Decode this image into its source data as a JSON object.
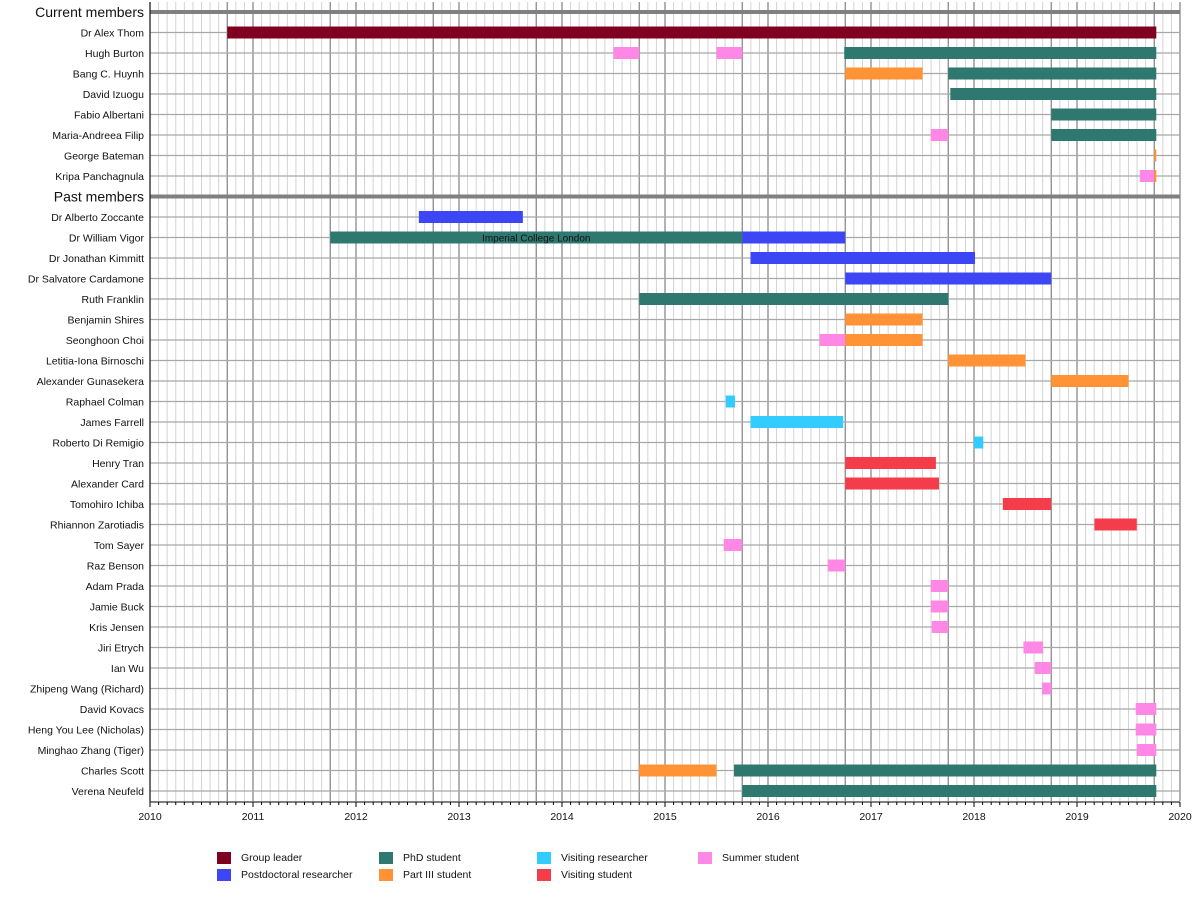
{
  "chart_data": {
    "type": "gantt",
    "title": "",
    "xlabel": "",
    "ylabel": "",
    "xlim": [
      2010,
      2020
    ],
    "x_ticks": [
      "2010",
      "2011",
      "2012",
      "2013",
      "2014",
      "2015",
      "2016",
      "2017",
      "2018",
      "2019",
      "2020"
    ],
    "minor_ticks_per_year": 12,
    "major_grid_note": "darker lines at each year start and each October (academic year)",
    "grid": true,
    "legend_position": "bottom",
    "roles": [
      {
        "key": "leader",
        "label": "Group leader",
        "color": "#7f0020"
      },
      {
        "key": "postdoc",
        "label": "Postdoctoral researcher",
        "color": "#3c46f5"
      },
      {
        "key": "phd",
        "label": "PhD student",
        "color": "#2e7870"
      },
      {
        "key": "partiii",
        "label": "Part III student",
        "color": "#ff9335"
      },
      {
        "key": "visres",
        "label": "Visiting researcher",
        "color": "#33ccff"
      },
      {
        "key": "visstu",
        "label": "Visiting student",
        "color": "#f53c4b"
      },
      {
        "key": "summer",
        "label": "Summer student",
        "color": "#ff88e6"
      }
    ],
    "rows": [
      {
        "type": "header",
        "label": "Current members"
      },
      {
        "label": "Dr Alex Thom",
        "bars": [
          {
            "role": "leader",
            "start": 2010.75,
            "end": 2019.77
          }
        ]
      },
      {
        "label": "Hugh Burton",
        "bars": [
          {
            "role": "summer",
            "start": 2014.5,
            "end": 2014.75
          },
          {
            "role": "summer",
            "start": 2015.5,
            "end": 2015.75
          },
          {
            "role": "phd",
            "start": 2016.74,
            "end": 2019.77
          }
        ]
      },
      {
        "label": "Bang C. Huynh",
        "bars": [
          {
            "role": "partiii",
            "start": 2016.75,
            "end": 2017.5
          },
          {
            "role": "phd",
            "start": 2017.75,
            "end": 2019.77
          }
        ]
      },
      {
        "label": "David Izuogu",
        "bars": [
          {
            "role": "phd",
            "start": 2017.77,
            "end": 2019.77
          }
        ]
      },
      {
        "label": "Fabio Albertani",
        "bars": [
          {
            "role": "phd",
            "start": 2018.75,
            "end": 2019.77
          }
        ]
      },
      {
        "label": "Maria-Andreea Filip",
        "bars": [
          {
            "role": "summer",
            "start": 2017.58,
            "end": 2017.75
          },
          {
            "role": "phd",
            "start": 2018.75,
            "end": 2019.77
          }
        ]
      },
      {
        "label": "George Bateman",
        "bars": [
          {
            "role": "partiii",
            "start": 2019.75,
            "end": 2019.77
          }
        ]
      },
      {
        "label": "Kripa Panchagnula",
        "bars": [
          {
            "role": "summer",
            "start": 2019.61,
            "end": 2019.75
          },
          {
            "role": "partiii",
            "start": 2019.75,
            "end": 2019.77
          }
        ]
      },
      {
        "type": "header",
        "label": "Past members"
      },
      {
        "label": "Dr Alberto Zoccante",
        "bars": [
          {
            "role": "postdoc",
            "start": 2012.61,
            "end": 2013.62
          }
        ]
      },
      {
        "label": "Dr William Vigor",
        "bars": [
          {
            "role": "phd",
            "start": 2011.75,
            "end": 2015.75,
            "text": "Imperial College London"
          },
          {
            "role": "postdoc",
            "start": 2015.75,
            "end": 2016.75
          }
        ]
      },
      {
        "label": "Dr Jonathan Kimmitt",
        "bars": [
          {
            "role": "postdoc",
            "start": 2015.83,
            "end": 2018.01
          }
        ]
      },
      {
        "label": "Dr Salvatore Cardamone",
        "bars": [
          {
            "role": "postdoc",
            "start": 2016.75,
            "end": 2018.75
          }
        ]
      },
      {
        "label": "Ruth Franklin",
        "bars": [
          {
            "role": "phd",
            "start": 2014.75,
            "end": 2017.75
          }
        ]
      },
      {
        "label": "Benjamin Shires",
        "bars": [
          {
            "role": "partiii",
            "start": 2016.75,
            "end": 2017.5
          }
        ]
      },
      {
        "label": "Seonghoon Choi",
        "bars": [
          {
            "role": "summer",
            "start": 2016.5,
            "end": 2016.75
          },
          {
            "role": "partiii",
            "start": 2016.75,
            "end": 2017.5
          }
        ]
      },
      {
        "label": "Letitia-Iona Birnoschi",
        "bars": [
          {
            "role": "partiii",
            "start": 2017.75,
            "end": 2018.5
          }
        ]
      },
      {
        "label": "Alexander Gunasekera",
        "bars": [
          {
            "role": "partiii",
            "start": 2018.75,
            "end": 2019.5
          }
        ]
      },
      {
        "label": "Raphael Colman",
        "bars": [
          {
            "role": "visres",
            "start": 2015.59,
            "end": 2015.68
          }
        ]
      },
      {
        "label": "James Farrell",
        "bars": [
          {
            "role": "visres",
            "start": 2015.83,
            "end": 2016.73
          }
        ]
      },
      {
        "label": "Roberto Di Remigio",
        "bars": [
          {
            "role": "visres",
            "start": 2018.0,
            "end": 2018.09
          }
        ]
      },
      {
        "label": "Henry Tran",
        "bars": [
          {
            "role": "visstu",
            "start": 2016.75,
            "end": 2017.63
          }
        ]
      },
      {
        "label": "Alexander Card",
        "bars": [
          {
            "role": "visstu",
            "start": 2016.75,
            "end": 2017.66
          }
        ]
      },
      {
        "label": "Tomohiro Ichiba",
        "bars": [
          {
            "role": "visstu",
            "start": 2018.28,
            "end": 2018.75
          }
        ]
      },
      {
        "label": "Rhiannon Zarotiadis",
        "bars": [
          {
            "role": "visstu",
            "start": 2019.17,
            "end": 2019.58
          }
        ]
      },
      {
        "label": "Tom Sayer",
        "bars": [
          {
            "role": "summer",
            "start": 2015.57,
            "end": 2015.75
          }
        ]
      },
      {
        "label": "Raz Benson",
        "bars": [
          {
            "role": "summer",
            "start": 2016.58,
            "end": 2016.75
          }
        ]
      },
      {
        "label": "Adam Prada",
        "bars": [
          {
            "role": "summer",
            "start": 2017.58,
            "end": 2017.75
          }
        ]
      },
      {
        "label": "Jamie Buck",
        "bars": [
          {
            "role": "summer",
            "start": 2017.58,
            "end": 2017.75
          }
        ]
      },
      {
        "label": "Kris Jensen",
        "bars": [
          {
            "role": "summer",
            "start": 2017.59,
            "end": 2017.75
          }
        ]
      },
      {
        "label": "Jiri Etrych",
        "bars": [
          {
            "role": "summer",
            "start": 2018.48,
            "end": 2018.67
          }
        ]
      },
      {
        "label": "Ian Wu",
        "bars": [
          {
            "role": "summer",
            "start": 2018.59,
            "end": 2018.75
          }
        ]
      },
      {
        "label": "Zhipeng Wang (Richard)",
        "bars": [
          {
            "role": "summer",
            "start": 2018.66,
            "end": 2018.75
          }
        ]
      },
      {
        "label": "David Kovacs",
        "bars": [
          {
            "role": "summer",
            "start": 2019.57,
            "end": 2019.77
          }
        ]
      },
      {
        "label": "Heng You Lee (Nicholas)",
        "bars": [
          {
            "role": "summer",
            "start": 2019.57,
            "end": 2019.77
          }
        ]
      },
      {
        "label": "Minghao Zhang (Tiger)",
        "bars": [
          {
            "role": "summer",
            "start": 2019.58,
            "end": 2019.77
          }
        ]
      },
      {
        "label": "Charles Scott",
        "bars": [
          {
            "role": "partiii",
            "start": 2014.75,
            "end": 2015.5
          },
          {
            "role": "phd",
            "start": 2015.67,
            "end": 2019.77
          }
        ]
      },
      {
        "label": "Verena Neufeld",
        "bars": [
          {
            "role": "phd",
            "start": 2015.75,
            "end": 2019.77
          }
        ]
      }
    ]
  }
}
